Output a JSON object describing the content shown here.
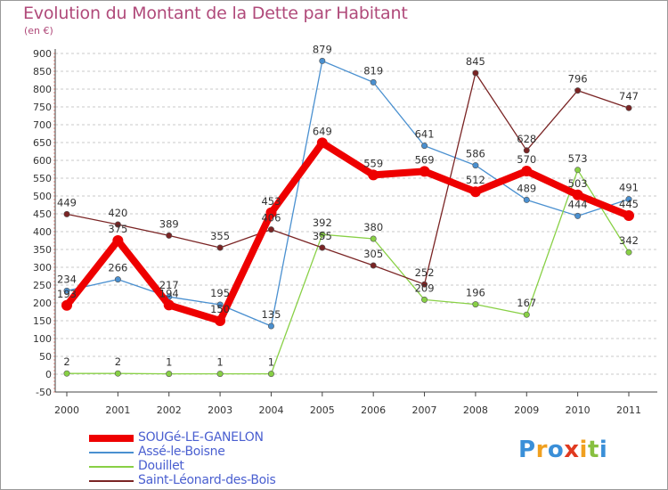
{
  "chart_data": {
    "type": "line",
    "title": "Evolution du Montant de la Dette par Habitant",
    "subtitle": "(en €)",
    "xlabel": "",
    "ylabel": "",
    "categories": [
      "2000",
      "2001",
      "2002",
      "2003",
      "2004",
      "2005",
      "2006",
      "2007",
      "2008",
      "2009",
      "2010",
      "2011"
    ],
    "ylim": [
      -50,
      900
    ],
    "yticks": [
      -50,
      0,
      50,
      100,
      150,
      200,
      250,
      300,
      350,
      400,
      450,
      500,
      550,
      600,
      650,
      700,
      750,
      800,
      850,
      900
    ],
    "grid": "horizontal-dashed",
    "legend_position": "bottom-left",
    "series": [
      {
        "name": "SOUGé-LE-GANELON",
        "color": "#ee0000",
        "values": [
          193,
          375,
          194,
          150,
          453,
          649,
          559,
          569,
          512,
          570,
          503,
          445
        ],
        "labels": [
          "193",
          "375",
          "194",
          "150",
          "453",
          "649",
          "559",
          "569",
          "512",
          "570",
          "503",
          "445"
        ]
      },
      {
        "name": "Assé-le-Boisne",
        "color": "#4a90d0",
        "values": [
          234,
          266,
          217,
          195,
          135,
          879,
          819,
          641,
          586,
          489,
          444,
          491
        ],
        "labels": [
          "234",
          "266",
          "217",
          "195",
          "135",
          "879",
          "819",
          "641",
          "586",
          "489",
          "444",
          "491"
        ]
      },
      {
        "name": "Douillet",
        "color": "#88d045",
        "values": [
          2,
          2,
          1,
          1,
          1,
          392,
          380,
          209,
          196,
          167,
          573,
          342
        ],
        "labels": [
          "2",
          "2",
          "1",
          "1",
          "1",
          "392",
          "380",
          "209",
          "196",
          "167",
          "573",
          "342"
        ]
      },
      {
        "name": "Saint-Léonard-des-Bois",
        "color": "#7a2424",
        "values": [
          449,
          420,
          389,
          355,
          406,
          355,
          305,
          252,
          845,
          628,
          796,
          747
        ],
        "labels": [
          "449",
          "420",
          "389",
          "355",
          "406",
          "355",
          "305",
          "252",
          "845",
          "628",
          "796",
          "747"
        ]
      }
    ]
  },
  "legend": {
    "items": [
      {
        "label": "SOUGé-LE-GANELON",
        "color": "#ee0000",
        "thickness": 8
      },
      {
        "label": "Assé-le-Boisne",
        "color": "#4a90d0",
        "thickness": 2
      },
      {
        "label": "Douillet",
        "color": "#88d045",
        "thickness": 2
      },
      {
        "label": "Saint-Léonard-des-Bois",
        "color": "#7a2424",
        "thickness": 2
      }
    ]
  },
  "logo": {
    "letters": [
      "P",
      "r",
      "o",
      "x",
      "i",
      "t",
      "i"
    ],
    "colors": [
      "#3a8fd8",
      "#f0a020",
      "#3a8fd8",
      "#e03a20",
      "#f0a020",
      "#88c040",
      "#3a8fd8"
    ]
  }
}
